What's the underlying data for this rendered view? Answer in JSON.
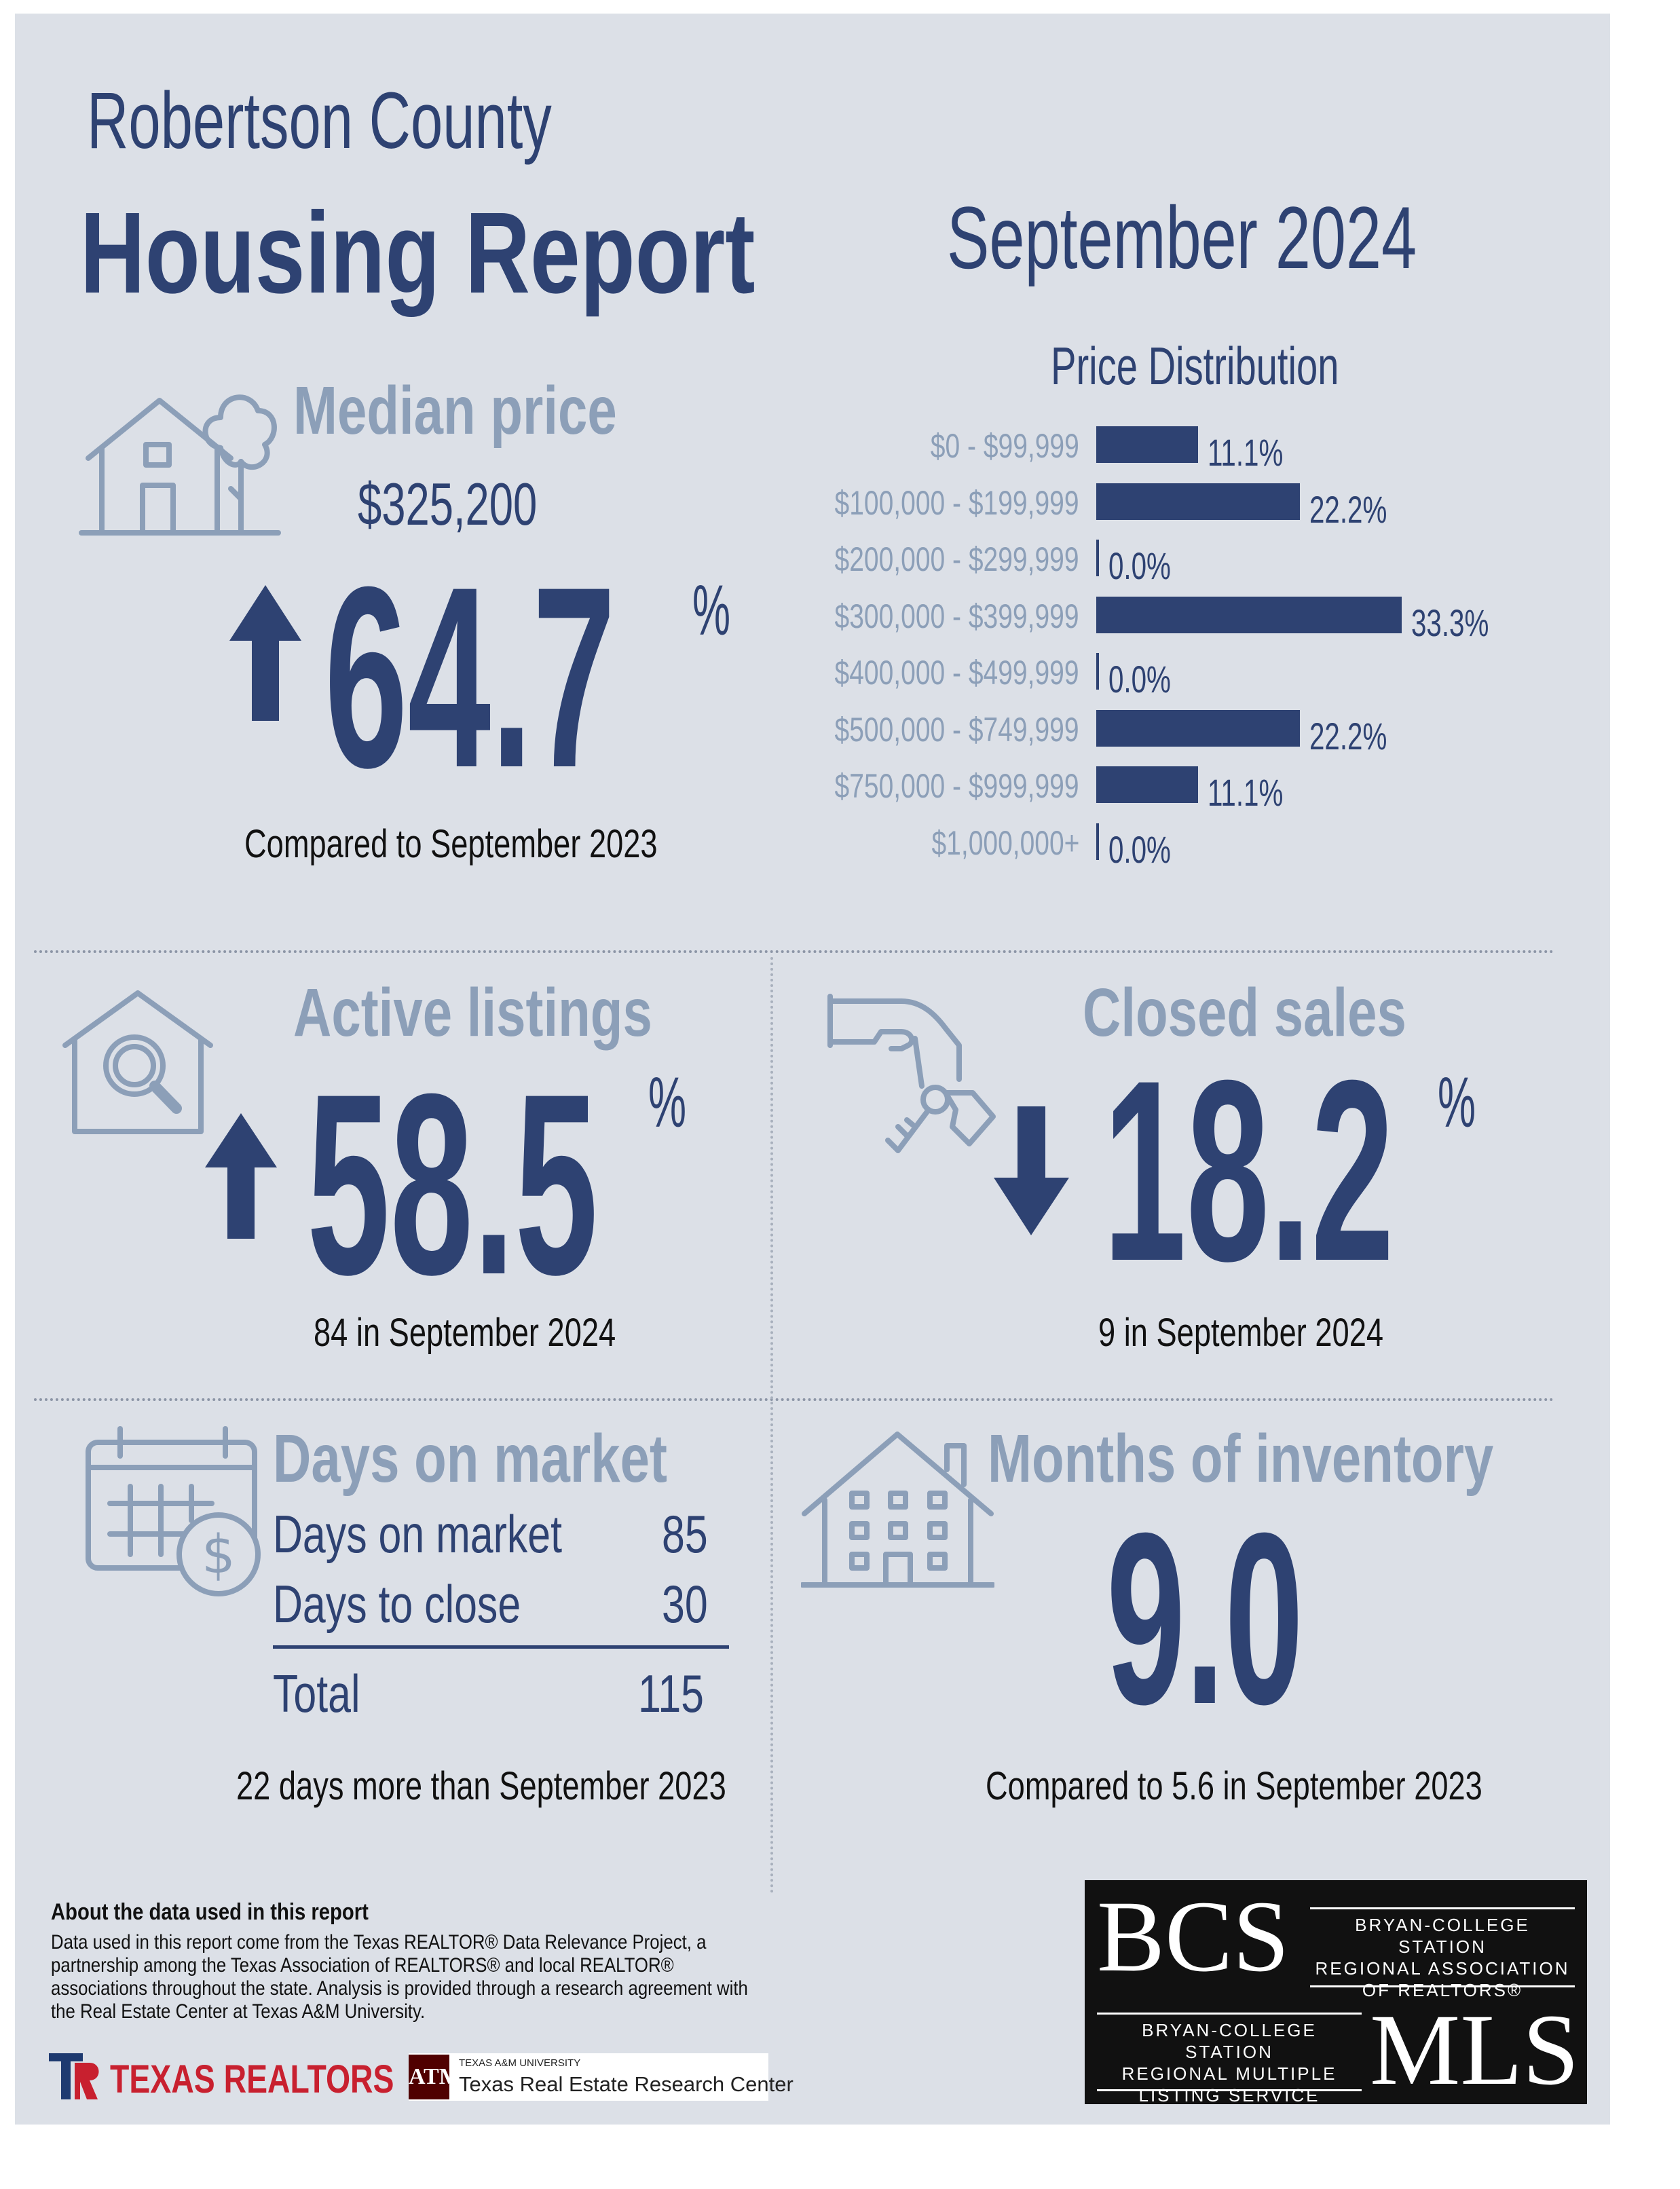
{
  "header": {
    "county": "Robertson County",
    "title": "Housing Report",
    "month": "September 2024"
  },
  "median_price": {
    "title": "Median price",
    "value": "$325,200",
    "change": "64.7",
    "change_unit": "%",
    "direction": "up",
    "caption": "Compared to September 2023"
  },
  "price_distribution": {
    "title": "Price Distribution",
    "rows": [
      {
        "label": "$0 - $99,999",
        "value": 11.1,
        "text": "11.1%"
      },
      {
        "label": "$100,000 - $199,999",
        "value": 22.2,
        "text": "22.2%"
      },
      {
        "label": "$200,000 - $299,999",
        "value": 0.0,
        "text": "0.0%"
      },
      {
        "label": "$300,000 - $399,999",
        "value": 33.3,
        "text": "33.3%"
      },
      {
        "label": "$400,000 - $499,999",
        "value": 0.0,
        "text": "0.0%"
      },
      {
        "label": "$500,000 - $749,999",
        "value": 22.2,
        "text": "22.2%"
      },
      {
        "label": "$750,000 - $999,999",
        "value": 11.1,
        "text": "11.1%"
      },
      {
        "label": "$1,000,000+",
        "value": 0.0,
        "text": "0.0%"
      }
    ]
  },
  "chart_data": {
    "type": "bar",
    "title": "Price Distribution",
    "categories": [
      "$0 - $99,999",
      "$100,000 - $199,999",
      "$200,000 - $299,999",
      "$300,000 - $399,999",
      "$400,000 - $499,999",
      "$500,000 - $749,999",
      "$750,000 - $999,999",
      "$1,000,000+"
    ],
    "values": [
      11.1,
      22.2,
      0.0,
      33.3,
      0.0,
      22.2,
      11.1,
      0.0
    ],
    "orientation": "horizontal",
    "unit": "%"
  },
  "active_listings": {
    "title": "Active listings",
    "change": "58.5",
    "change_unit": "%",
    "direction": "up",
    "caption": "84 in September 2024"
  },
  "closed_sales": {
    "title": "Closed sales",
    "change": "18.2",
    "change_unit": "%",
    "direction": "down",
    "caption": "9 in September 2024"
  },
  "days_on_market": {
    "title": "Days on market",
    "rows": [
      {
        "label": "Days on market",
        "value": "85"
      },
      {
        "label": "Days to close",
        "value": "30"
      }
    ],
    "total_label": "Total",
    "total_value": "115",
    "caption": "22 days more than September 2023"
  },
  "months_inventory": {
    "title": "Months of inventory",
    "value": "9.0",
    "caption": "Compared to 5.6 in September 2023"
  },
  "about": {
    "title": "About the data used in this report",
    "body": "Data used in this report come from the Texas REALTOR® Data Relevance Project, a partnership among the Texas Association of REALTORS® and local REALTOR® associations throughout the state. Analysis is provided through a research agreement with the Real Estate Center at Texas A&M University."
  },
  "logos": {
    "texas_realtors": "TEXAS REALTORS",
    "tamu_small": "TEXAS A&M UNIVERSITY",
    "tamu_center": "Texas Real Estate Research Center",
    "bcs": "BCS",
    "bcs_assoc_1": "BRYAN-COLLEGE STATION",
    "bcs_assoc_2": "REGIONAL ASSOCIATION",
    "bcs_assoc_3": "OF REALTORS®",
    "mls_1": "BRYAN-COLLEGE STATION",
    "mls_2": "REGIONAL MULTIPLE",
    "mls_3": "LISTING SERVICE",
    "mls": "MLS"
  },
  "colors": {
    "navy": "#2e4272",
    "light": "#8c9fb8",
    "background": "#dce0e7"
  }
}
